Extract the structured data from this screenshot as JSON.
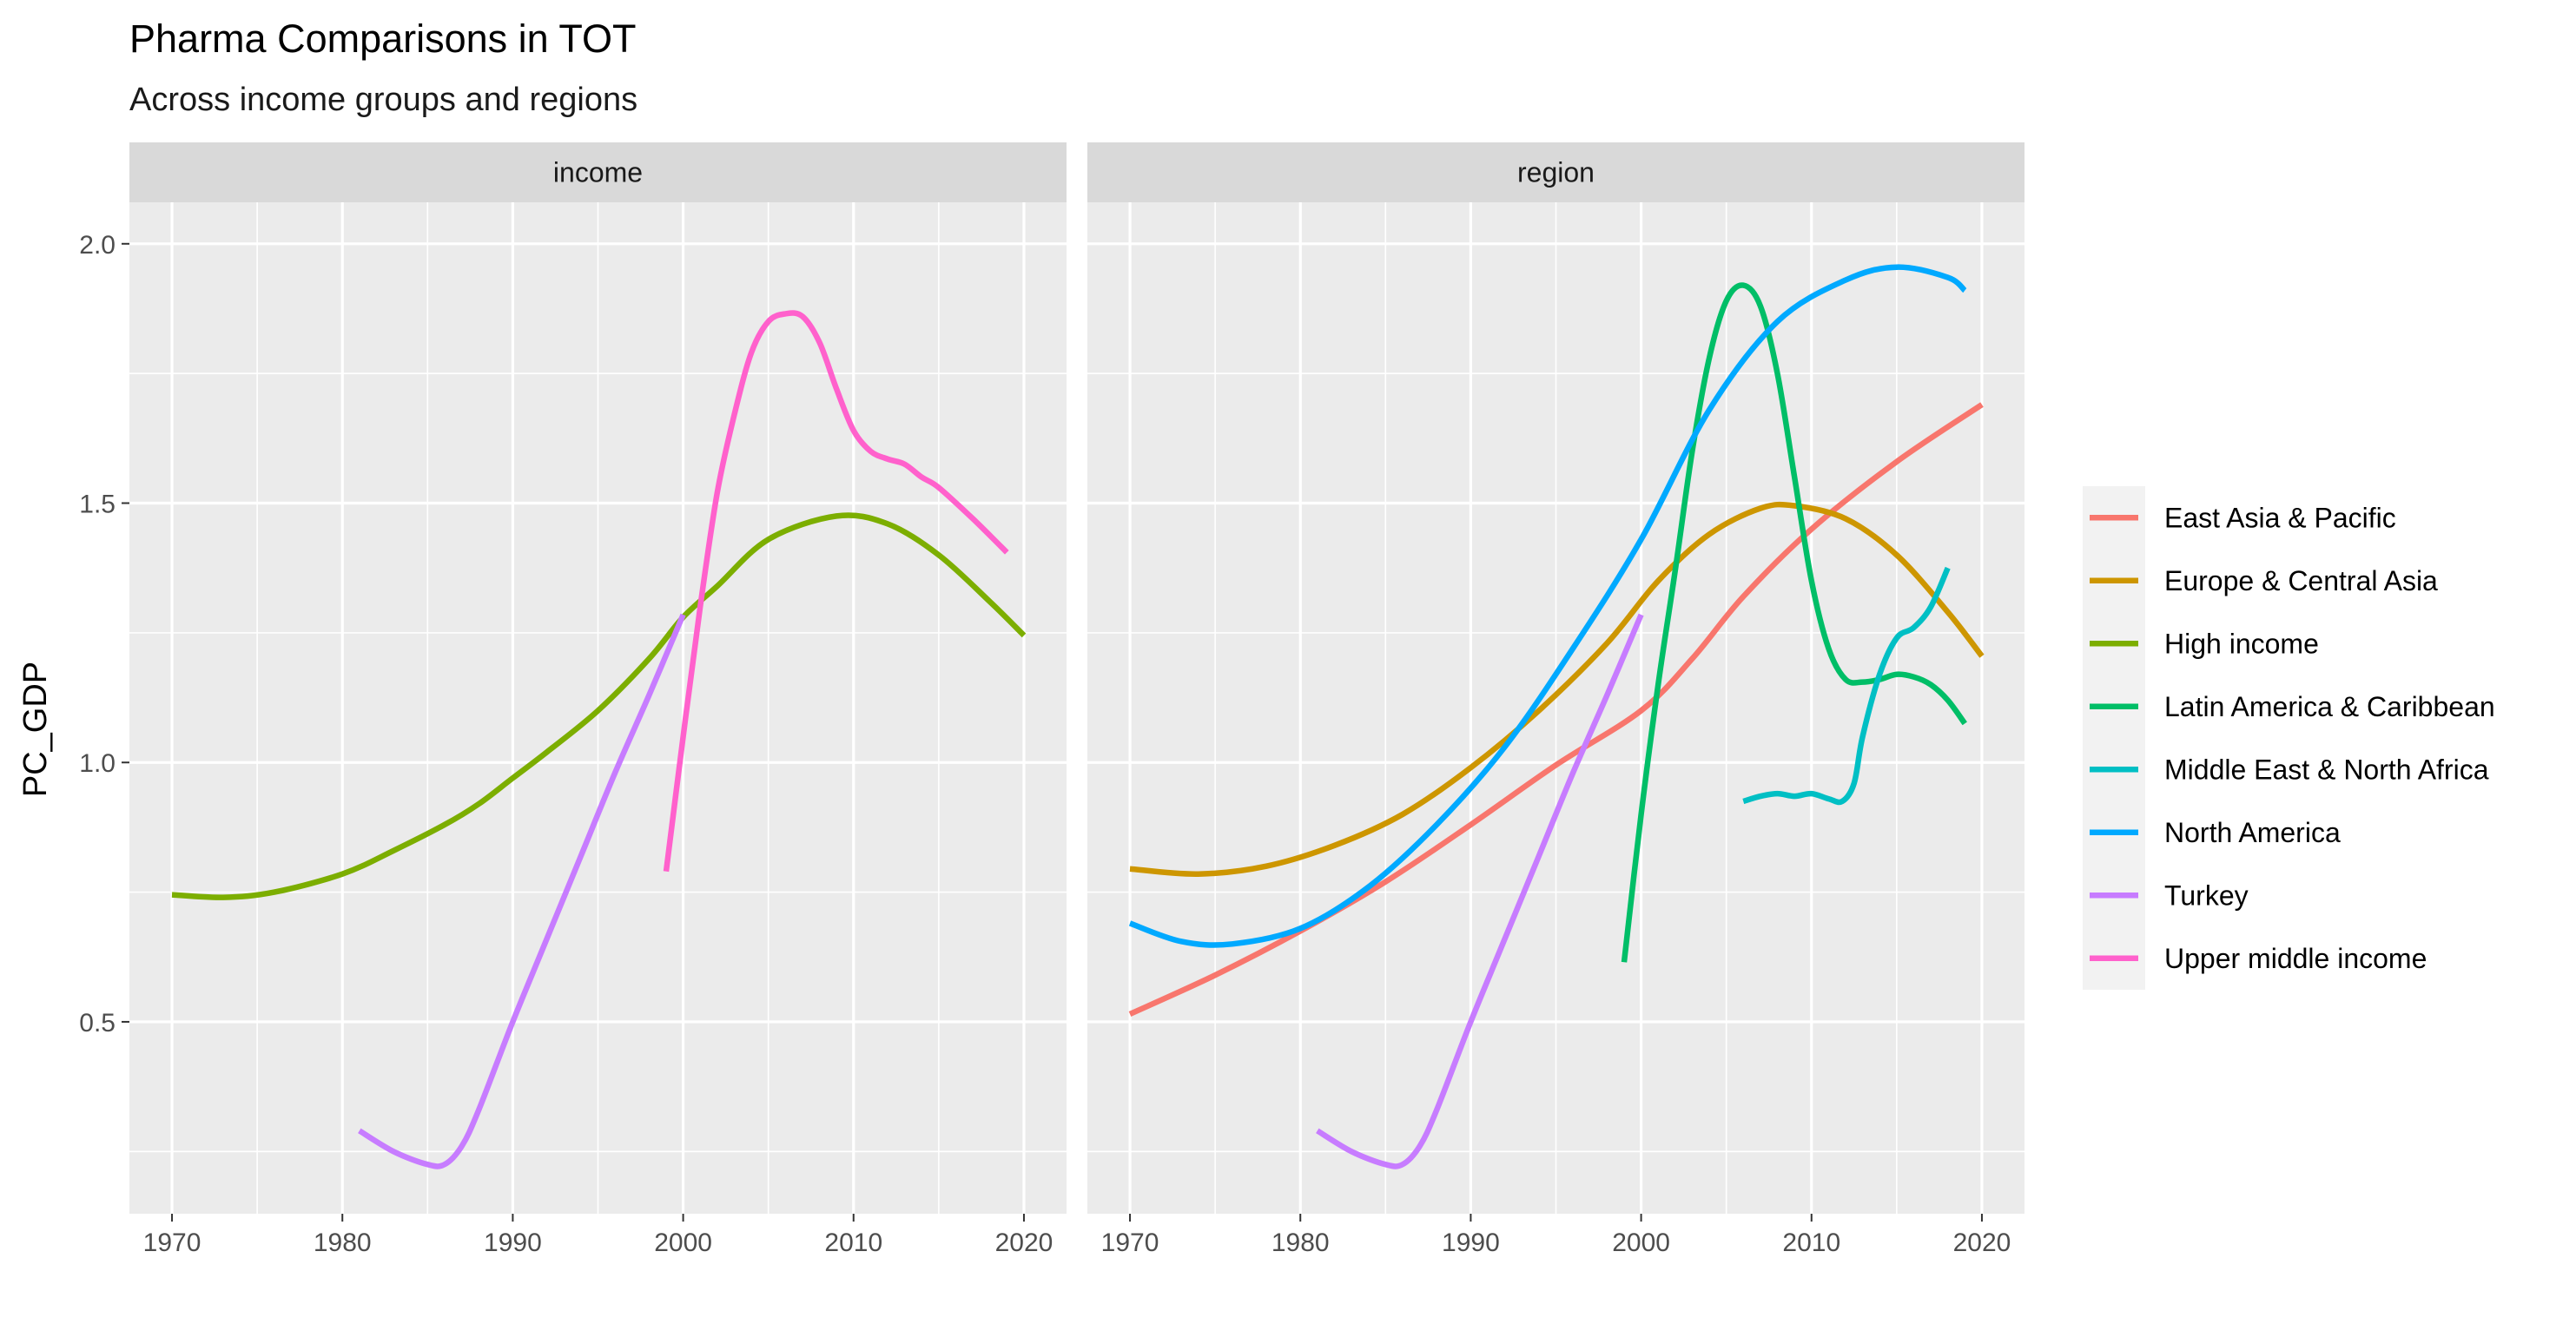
{
  "chart_data": {
    "type": "line",
    "title": "Pharma Comparisons in TOT",
    "subtitle": "Across income groups and regions",
    "xlabel": "",
    "ylabel": "PC_GDP",
    "xlim": [
      1967.5,
      2022.5
    ],
    "ylim": [
      0.13,
      2.08
    ],
    "x_ticks": [
      1970,
      1980,
      1990,
      2000,
      2010,
      2020
    ],
    "y_ticks": [
      0.5,
      1.0,
      1.5,
      2.0
    ],
    "y_tick_labels": [
      "0.5",
      "1.0",
      "1.5",
      "2.0"
    ],
    "grid": true,
    "legend_position": "right",
    "series_colors": {
      "East Asia & Pacific": "#F8766D",
      "Europe & Central Asia": "#CD9600",
      "High income": "#7CAE00",
      "Latin America & Caribbean": "#00BE67",
      "Middle East & North Africa": "#00BFC4",
      "North America": "#00A9FF",
      "Turkey": "#C77CFF",
      "Upper middle income": "#FF61CC"
    },
    "legend": [
      "East Asia & Pacific",
      "Europe & Central Asia",
      "High income",
      "Latin America & Caribbean",
      "Middle East & North Africa",
      "North America",
      "Turkey",
      "Upper middle income"
    ],
    "panels": [
      {
        "label": "income",
        "series": [
          {
            "name": "High income",
            "x": [
              1970,
              1973,
              1976,
              1980,
              1983,
              1986,
              1988,
              1990,
              1992,
              1995,
              1998,
              2000,
              2002,
              2005,
              2009,
              2012,
              2015,
              2018,
              2020
            ],
            "y": [
              0.745,
              0.74,
              0.75,
              0.785,
              0.83,
              0.88,
              0.92,
              0.97,
              1.02,
              1.1,
              1.2,
              1.28,
              1.34,
              1.43,
              1.475,
              1.46,
              1.4,
              1.31,
              1.245
            ]
          },
          {
            "name": "Turkey",
            "x": [
              1981,
              1983,
              1985,
              1986,
              1987,
              1988,
              1990,
              1992,
              1994,
              1996,
              1998,
              2000
            ],
            "y": [
              0.29,
              0.25,
              0.225,
              0.225,
              0.26,
              0.33,
              0.5,
              0.66,
              0.82,
              0.98,
              1.13,
              1.285
            ]
          },
          {
            "name": "Upper middle income",
            "x": [
              1999,
              2000,
              2001,
              2002,
              2003,
              2004,
              2005,
              2006,
              2007,
              2008,
              2009,
              2010,
              2011,
              2012,
              2013,
              2014,
              2015,
              2017,
              2019
            ],
            "y": [
              0.79,
              1.05,
              1.3,
              1.52,
              1.67,
              1.79,
              1.85,
              1.865,
              1.86,
              1.81,
              1.72,
              1.64,
              1.6,
              1.585,
              1.575,
              1.55,
              1.53,
              1.47,
              1.405
            ]
          }
        ]
      },
      {
        "label": "region",
        "series": [
          {
            "name": "East Asia & Pacific",
            "x": [
              1970,
              1975,
              1980,
              1985,
              1990,
              1995,
              2000,
              2003,
              2006,
              2010,
              2015,
              2020
            ],
            "y": [
              0.515,
              0.59,
              0.675,
              0.77,
              0.88,
              0.995,
              1.1,
              1.2,
              1.32,
              1.45,
              1.58,
              1.69
            ]
          },
          {
            "name": "Europe & Central Asia",
            "x": [
              1970,
              1974,
              1978,
              1982,
              1986,
              1990,
              1994,
              1998,
              2001,
              2004,
              2007,
              2009,
              2012,
              2015,
              2018,
              2020
            ],
            "y": [
              0.795,
              0.785,
              0.8,
              0.84,
              0.9,
              0.99,
              1.1,
              1.23,
              1.35,
              1.44,
              1.49,
              1.495,
              1.47,
              1.4,
              1.29,
              1.205
            ]
          },
          {
            "name": "Latin America & Caribbean",
            "x": [
              1999,
              2000,
              2001,
              2002,
              2003,
              2004,
              2005,
              2006,
              2007,
              2008,
              2009,
              2010,
              2011,
              2012,
              2013,
              2014,
              2015,
              2016,
              2017,
              2018,
              2019
            ],
            "y": [
              0.615,
              0.9,
              1.15,
              1.37,
              1.6,
              1.78,
              1.89,
              1.92,
              1.88,
              1.75,
              1.55,
              1.35,
              1.22,
              1.16,
              1.155,
              1.16,
              1.17,
              1.165,
              1.15,
              1.12,
              1.075
            ]
          },
          {
            "name": "Middle East & North Africa",
            "x": [
              2006,
              2007,
              2008,
              2009,
              2010,
              2011,
              2011.8,
              2012.5,
              2013,
              2014,
              2015,
              2016,
              2017,
              2018
            ],
            "y": [
              0.925,
              0.935,
              0.94,
              0.935,
              0.94,
              0.93,
              0.925,
              0.96,
              1.05,
              1.17,
              1.24,
              1.26,
              1.3,
              1.375
            ]
          },
          {
            "name": "North America",
            "x": [
              1970,
              1973,
              1976,
              1980,
              1984,
              1988,
              1992,
              1996,
              2000,
              2004,
              2008,
              2012,
              2015,
              2018,
              2019
            ],
            "y": [
              0.69,
              0.655,
              0.65,
              0.68,
              0.76,
              0.88,
              1.03,
              1.22,
              1.43,
              1.68,
              1.85,
              1.93,
              1.955,
              1.935,
              1.91
            ]
          },
          {
            "name": "Turkey",
            "x": [
              1981,
              1983,
              1985,
              1986,
              1987,
              1988,
              1990,
              1992,
              1994,
              1996,
              1998,
              2000
            ],
            "y": [
              0.29,
              0.25,
              0.225,
              0.225,
              0.26,
              0.33,
              0.5,
              0.66,
              0.82,
              0.98,
              1.13,
              1.285
            ]
          }
        ]
      }
    ]
  }
}
